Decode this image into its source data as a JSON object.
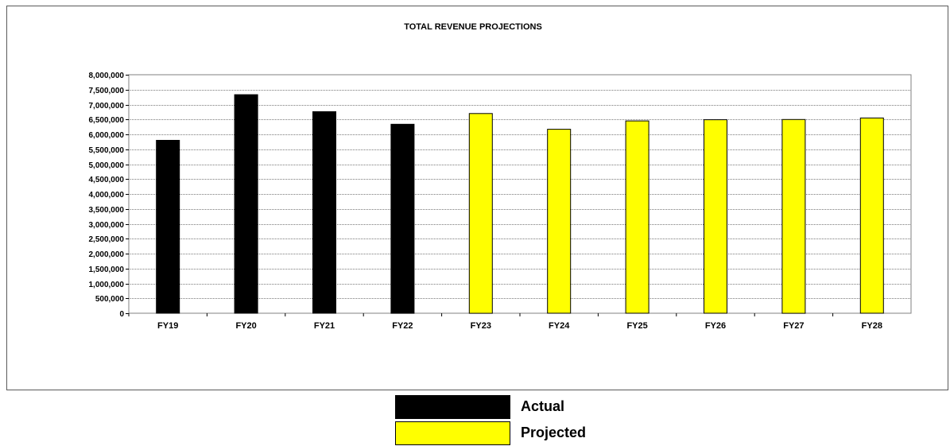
{
  "chart_data": {
    "type": "bar",
    "title": "TOTAL REVENUE PROJECTIONS",
    "xlabel": "",
    "ylabel": "",
    "categories": [
      "FY19",
      "FY20",
      "FY21",
      "FY22",
      "FY23",
      "FY24",
      "FY25",
      "FY26",
      "FY27",
      "FY28"
    ],
    "values": [
      5800000,
      7330000,
      6760000,
      6340000,
      6700000,
      6170000,
      6450000,
      6490000,
      6500000,
      6550000
    ],
    "status": [
      "Actual",
      "Actual",
      "Actual",
      "Actual",
      "Projected",
      "Projected",
      "Projected",
      "Projected",
      "Projected",
      "Projected"
    ],
    "ylim": [
      0,
      8000000
    ],
    "ytick_step": 500000,
    "yticks": [
      "0",
      "500,000",
      "1,000,000",
      "1,500,000",
      "2,000,000",
      "2,500,000",
      "3,000,000",
      "3,500,000",
      "4,000,000",
      "4,500,000",
      "5,000,000",
      "5,500,000",
      "6,000,000",
      "6,500,000",
      "7,000,000",
      "7,500,000",
      "8,000,000"
    ],
    "grid": true,
    "colors": {
      "Actual": "#000000",
      "Projected": "#ffff00"
    },
    "legend": {
      "placement": "bottom-center",
      "items": [
        {
          "label": "Actual",
          "color": "#000000"
        },
        {
          "label": "Projected",
          "color": "#ffff00"
        }
      ]
    }
  }
}
